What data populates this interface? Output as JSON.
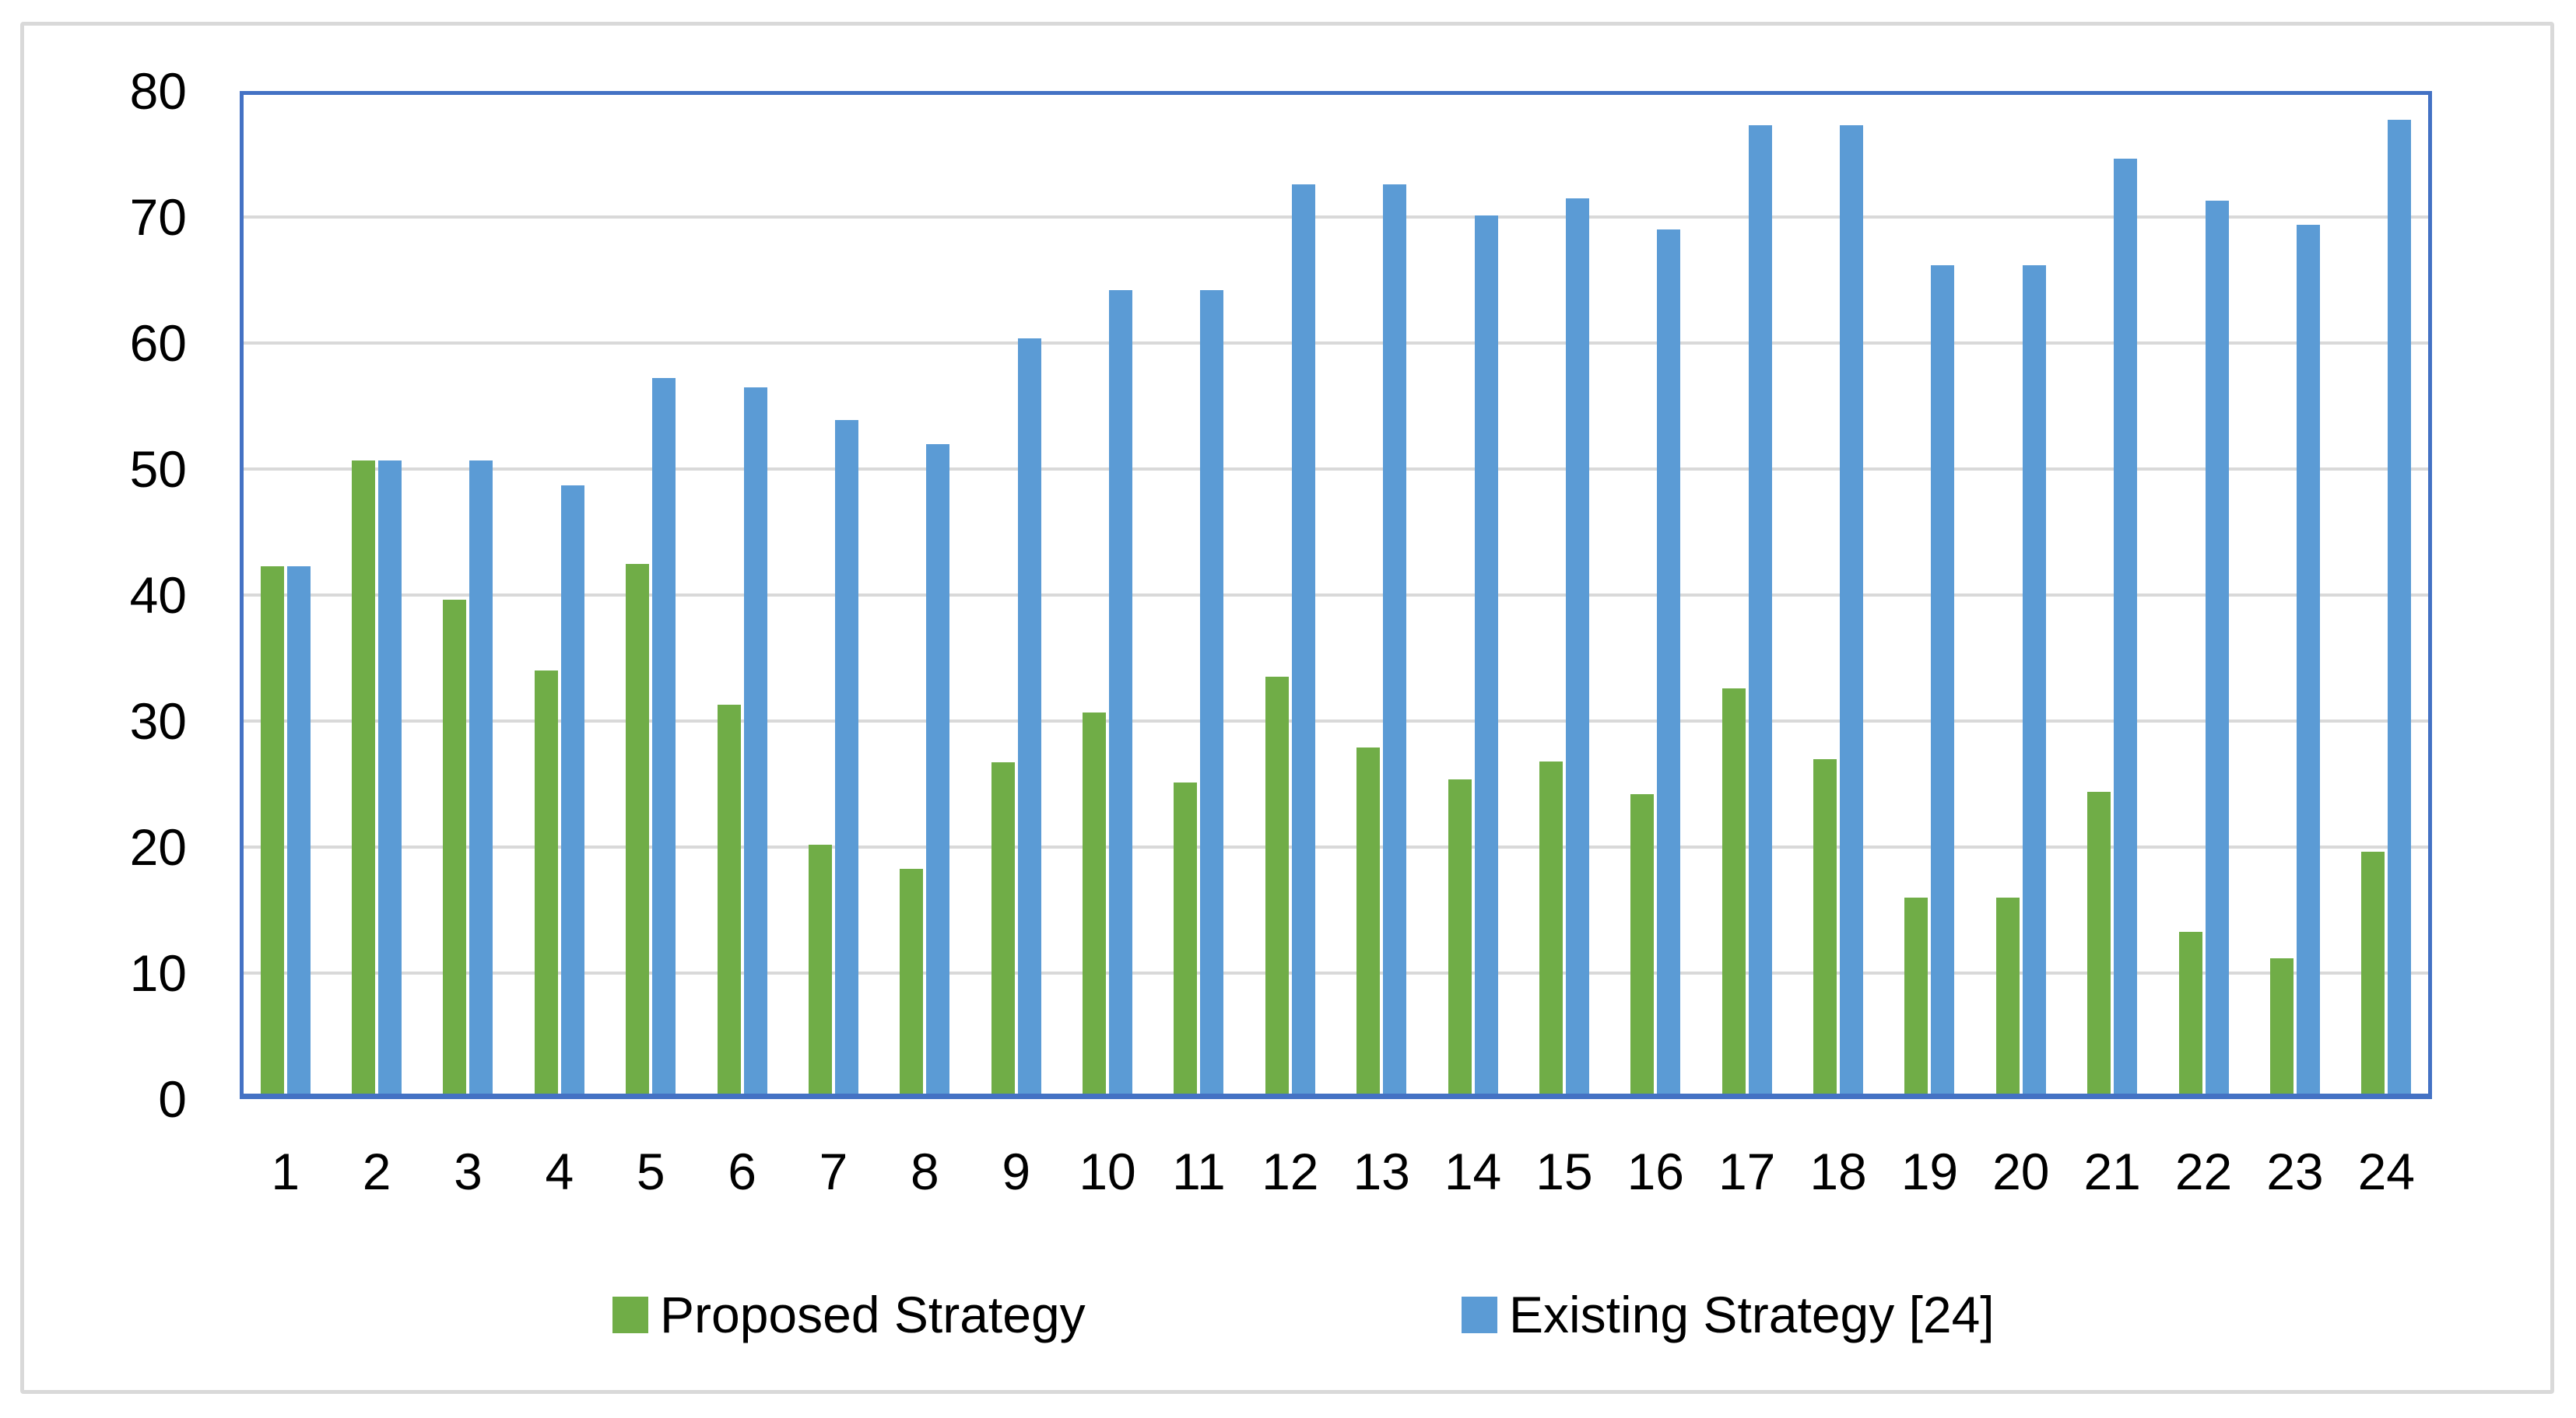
{
  "figure": {
    "background": "#FFFFFF",
    "outer_border_color": "#D9D9D9",
    "plot_border_color": "#4472C4",
    "gridline_color": "#D9D9D9",
    "tick_label_color": "#000000"
  },
  "legend": {
    "position": "bottom",
    "items": [
      {
        "label": "Proposed Strategy",
        "color": "#70AD47"
      },
      {
        "label": "Existing Strategy [24]",
        "color": "#5B9BD5"
      }
    ]
  },
  "chart_data": {
    "type": "bar",
    "title": "",
    "xlabel": "",
    "ylabel": "",
    "categories": [
      "1",
      "2",
      "3",
      "4",
      "5",
      "6",
      "7",
      "8",
      "9",
      "10",
      "11",
      "12",
      "13",
      "14",
      "15",
      "16",
      "17",
      "18",
      "19",
      "20",
      "21",
      "22",
      "23",
      "24"
    ],
    "series": [
      {
        "name": "Proposed Strategy",
        "color": "#70AD47",
        "values": [
          42.3,
          50.7,
          39.6,
          34.0,
          42.5,
          31.3,
          20.2,
          18.3,
          26.7,
          30.7,
          25.1,
          33.5,
          27.9,
          25.4,
          26.8,
          24.2,
          32.6,
          27.0,
          16.0,
          16.0,
          24.4,
          13.3,
          11.2,
          19.6
        ]
      },
      {
        "name": "Existing Strategy [24]",
        "color": "#5B9BD5",
        "values": [
          42.3,
          50.7,
          50.7,
          48.7,
          57.2,
          56.5,
          53.9,
          52.0,
          60.4,
          64.2,
          64.2,
          72.6,
          72.6,
          70.1,
          71.5,
          69.0,
          77.3,
          77.3,
          66.2,
          66.2,
          74.6,
          71.3,
          69.4,
          77.7
        ]
      }
    ],
    "ylim": [
      0,
      80
    ],
    "yticks": [
      0,
      10,
      20,
      30,
      40,
      50,
      60,
      70,
      80
    ],
    "grid": true,
    "legend_position": "bottom"
  }
}
